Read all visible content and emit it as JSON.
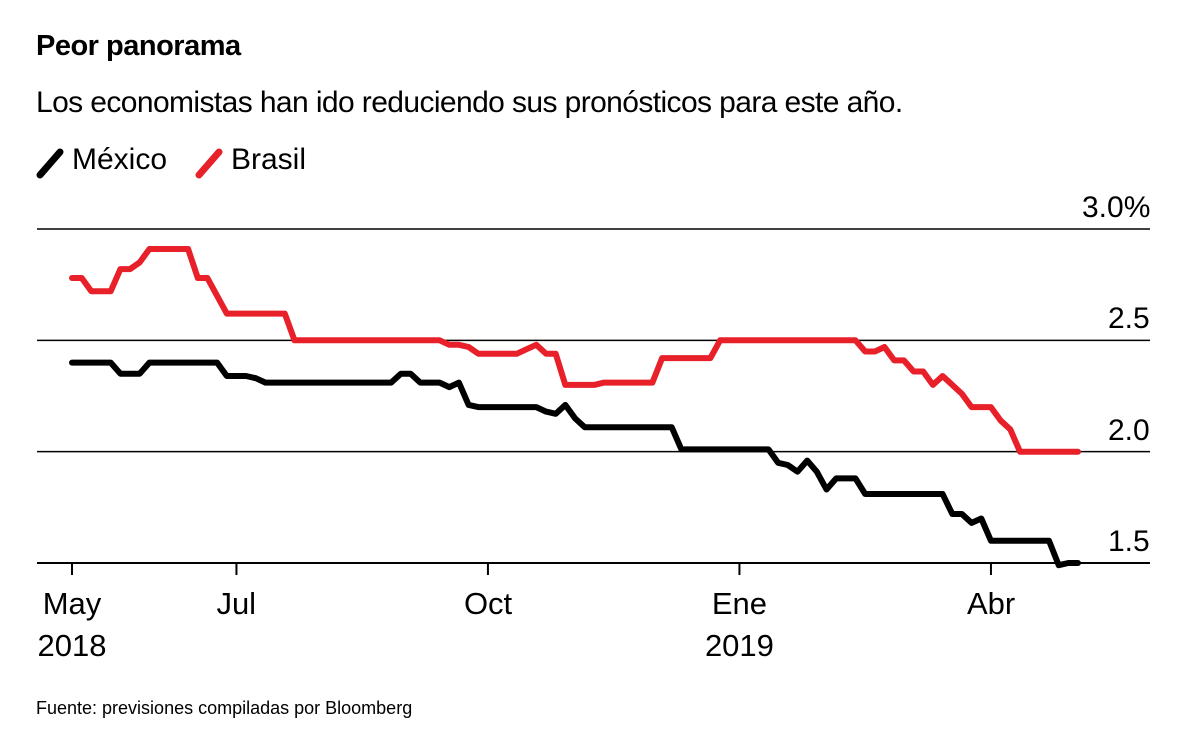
{
  "chart_data": {
    "type": "line",
    "title": "Peor panorama",
    "subtitle": "Los economistas han ido reduciendo sus pronósticos para este año.",
    "source": "Fuente: previsiones compiladas por Bloomberg",
    "categories": [
      "May\n2018",
      null,
      null,
      null,
      null,
      null,
      null,
      null,
      null,
      null,
      null,
      null,
      null,
      null,
      null,
      null,
      null,
      "Jul",
      null,
      null,
      null,
      null,
      null,
      null,
      null,
      null,
      null,
      null,
      null,
      null,
      null,
      null,
      null,
      null,
      null,
      null,
      null,
      null,
      null,
      null,
      null,
      null,
      null,
      "Oct",
      null,
      null,
      null,
      null,
      null,
      null,
      null,
      null,
      null,
      null,
      null,
      null,
      null,
      null,
      null,
      null,
      null,
      null,
      null,
      null,
      null,
      null,
      null,
      null,
      null,
      "Ene\n2019",
      null,
      null,
      null,
      null,
      null,
      null,
      null,
      null,
      null,
      null,
      null,
      null,
      null,
      null,
      null,
      null,
      null,
      null,
      null,
      null,
      null,
      null,
      null,
      null,
      null,
      "Abr",
      null,
      null,
      null,
      null,
      null,
      null,
      null,
      null,
      null
    ],
    "series": [
      {
        "name": "México",
        "color": "#000000",
        "values": [
          2.4,
          2.4,
          2.4,
          2.4,
          2.4,
          2.35,
          2.35,
          2.35,
          2.4,
          2.4,
          2.4,
          2.4,
          2.4,
          2.4,
          2.4,
          2.4,
          2.34,
          2.34,
          2.34,
          2.33,
          2.31,
          2.31,
          2.31,
          2.31,
          2.31,
          2.31,
          2.31,
          2.31,
          2.31,
          2.31,
          2.31,
          2.31,
          2.31,
          2.31,
          2.35,
          2.35,
          2.31,
          2.31,
          2.31,
          2.29,
          2.31,
          2.21,
          2.2,
          2.2,
          2.2,
          2.2,
          2.2,
          2.2,
          2.2,
          2.18,
          2.17,
          2.21,
          2.15,
          2.11,
          2.11,
          2.11,
          2.11,
          2.11,
          2.11,
          2.11,
          2.11,
          2.11,
          2.11,
          2.01,
          2.01,
          2.01,
          2.01,
          2.01,
          2.01,
          2.01,
          2.01,
          2.01,
          2.01,
          1.95,
          1.94,
          1.91,
          1.96,
          1.91,
          1.83,
          1.88,
          1.88,
          1.88,
          1.81,
          1.81,
          1.81,
          1.81,
          1.81,
          1.81,
          1.81,
          1.81,
          1.81,
          1.72,
          1.72,
          1.68,
          1.7,
          1.6,
          1.6,
          1.6,
          1.6,
          1.6,
          1.6,
          1.6,
          1.49,
          1.5,
          1.5
        ]
      },
      {
        "name": "Brasil",
        "color": "#e8202a",
        "values": [
          2.78,
          2.78,
          2.72,
          2.72,
          2.72,
          2.82,
          2.82,
          2.85,
          2.91,
          2.91,
          2.91,
          2.91,
          2.91,
          2.78,
          2.78,
          2.7,
          2.62,
          2.62,
          2.62,
          2.62,
          2.62,
          2.62,
          2.62,
          2.5,
          2.5,
          2.5,
          2.5,
          2.5,
          2.5,
          2.5,
          2.5,
          2.5,
          2.5,
          2.5,
          2.5,
          2.5,
          2.5,
          2.5,
          2.5,
          2.48,
          2.48,
          2.47,
          2.44,
          2.44,
          2.44,
          2.44,
          2.44,
          2.46,
          2.48,
          2.44,
          2.44,
          2.3,
          2.3,
          2.3,
          2.3,
          2.31,
          2.31,
          2.31,
          2.31,
          2.31,
          2.31,
          2.42,
          2.42,
          2.42,
          2.42,
          2.42,
          2.42,
          2.5,
          2.5,
          2.5,
          2.5,
          2.5,
          2.5,
          2.5,
          2.5,
          2.5,
          2.5,
          2.5,
          2.5,
          2.5,
          2.5,
          2.5,
          2.45,
          2.45,
          2.47,
          2.41,
          2.41,
          2.36,
          2.36,
          2.3,
          2.34,
          2.3,
          2.26,
          2.2,
          2.2,
          2.2,
          2.14,
          2.1,
          2.0,
          2.0,
          2.0,
          2.0,
          2.0,
          2.0,
          2.0
        ]
      }
    ],
    "ylim": [
      1.5,
      3.0
    ],
    "yticks": [
      {
        "value": 1.5,
        "label": "1.5"
      },
      {
        "value": 2,
        "label": "2.0"
      },
      {
        "value": 2.5,
        "label": "2.5"
      },
      {
        "value": 3,
        "label": "3.0%"
      }
    ],
    "grid": true
  }
}
